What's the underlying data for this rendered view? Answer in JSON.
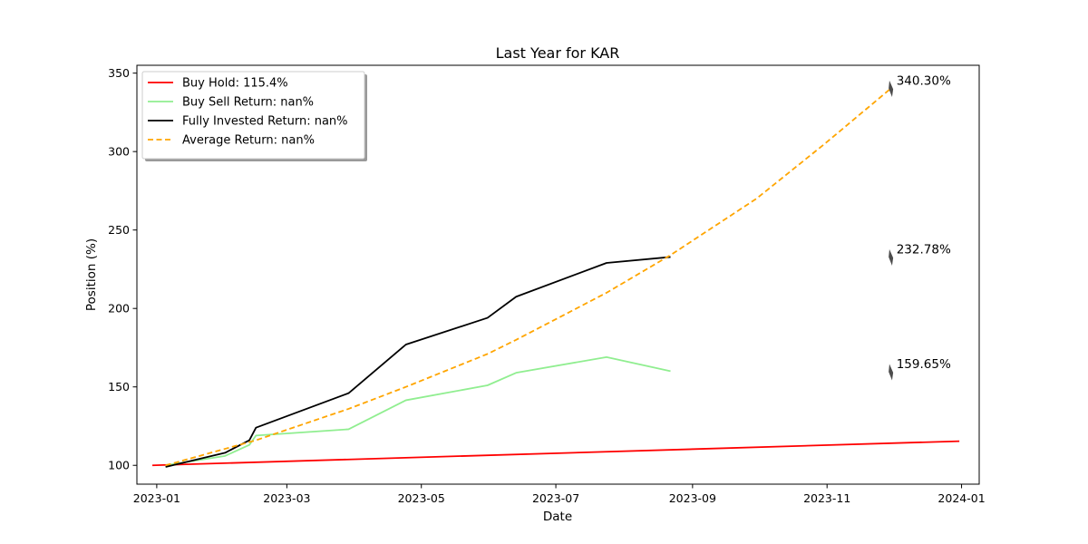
{
  "chart_data": {
    "type": "line",
    "title": "Last Year for KAR",
    "xlabel": "Date",
    "ylabel": "Position (%)",
    "xlim": [
      "2022-12-23",
      "2024-01-09"
    ],
    "ylim": [
      88,
      355
    ],
    "x_ticks": [
      "2023-01-01",
      "2023-03-01",
      "2023-05-01",
      "2023-07-01",
      "2023-09-01",
      "2023-11-01",
      "2024-01-01"
    ],
    "x_tick_labels": [
      "2023-01",
      "2023-03",
      "2023-05",
      "2023-07",
      "2023-09",
      "2023-11",
      "2024-01"
    ],
    "y_ticks": [
      100,
      150,
      200,
      250,
      300,
      350
    ],
    "y_tick_labels": [
      "100",
      "150",
      "200",
      "250",
      "300",
      "350"
    ],
    "grid": false,
    "legend_position": "top-left",
    "series": [
      {
        "name": "Buy Hold: 115.4%",
        "color": "#ff0000",
        "style": "solid",
        "x": [
          "2022-12-30",
          "2023-12-31"
        ],
        "y": [
          100,
          115.4
        ]
      },
      {
        "name": "Buy Sell Return: nan%",
        "color": "#90ee90",
        "style": "solid",
        "x": [
          "2023-01-05",
          "2023-02-01",
          "2023-02-12",
          "2023-02-15",
          "2023-03-29",
          "2023-04-24",
          "2023-05-31",
          "2023-06-13",
          "2023-07-24",
          "2023-08-22"
        ],
        "y": [
          100,
          106,
          113,
          119,
          123,
          141.5,
          151,
          159,
          169,
          160
        ]
      },
      {
        "name": "Fully Invested Return: nan%",
        "color": "#000000",
        "style": "solid",
        "x": [
          "2023-01-05",
          "2023-02-01",
          "2023-02-12",
          "2023-02-15",
          "2023-03-29",
          "2023-04-24",
          "2023-05-31",
          "2023-06-13",
          "2023-07-24",
          "2023-08-22"
        ],
        "y": [
          99,
          108,
          116,
          124,
          146,
          177,
          194,
          207.5,
          229,
          232.8
        ]
      },
      {
        "name": "Average Return: nan%",
        "color": "#ffa500",
        "style": "dashed",
        "x": [
          "2023-01-05",
          "2023-02-15",
          "2023-03-29",
          "2023-04-24",
          "2023-05-31",
          "2023-06-13",
          "2023-07-24",
          "2023-08-22",
          "2023-09-30",
          "2023-10-31",
          "2023-11-30"
        ],
        "y": [
          100,
          116,
          136,
          150,
          171,
          180,
          210,
          234,
          270,
          305,
          340.3
        ]
      }
    ],
    "annotations": [
      {
        "text": "340.30%",
        "x": "2023-11-30",
        "y": 340.3
      },
      {
        "text": "232.78%",
        "x": "2023-11-30",
        "y": 232.78
      },
      {
        "text": "159.65%",
        "x": "2023-11-30",
        "y": 159.65
      }
    ]
  }
}
